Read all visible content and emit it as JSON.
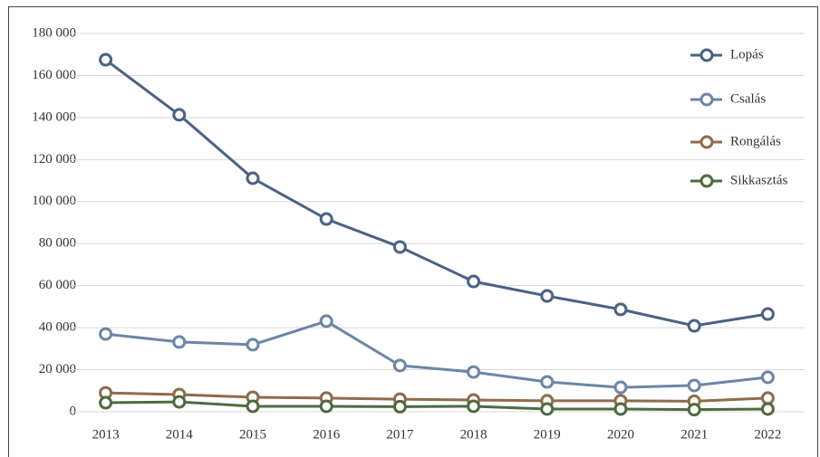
{
  "chart_data": {
    "type": "line",
    "categories": [
      "2013",
      "2014",
      "2015",
      "2016",
      "2017",
      "2018",
      "2019",
      "2020",
      "2021",
      "2022"
    ],
    "series": [
      {
        "name": "Lopás",
        "color": "#4a6285",
        "values": [
          167500,
          141300,
          111100,
          91700,
          78400,
          62000,
          55100,
          48700,
          40900,
          46500
        ]
      },
      {
        "name": "Csalás",
        "color": "#6c86a5",
        "values": [
          37000,
          33200,
          31900,
          43100,
          22000,
          18900,
          14200,
          11600,
          12500,
          16400
        ]
      },
      {
        "name": "Rongálás",
        "color": "#8e6c4c",
        "values": [
          9000,
          8200,
          6900,
          6500,
          6000,
          5600,
          5200,
          5200,
          5000,
          6500
        ]
      },
      {
        "name": "Sikkasztás",
        "color": "#4d6b40",
        "values": [
          4300,
          4700,
          2600,
          2600,
          2400,
          2600,
          1300,
          1300,
          1000,
          1300
        ]
      }
    ],
    "ylim": [
      0,
      180000
    ],
    "yticks": [
      {
        "value": 0,
        "label": "0"
      },
      {
        "value": 20000,
        "label": "20 000"
      },
      {
        "value": 40000,
        "label": "40 000"
      },
      {
        "value": 60000,
        "label": "60 000"
      },
      {
        "value": 80000,
        "label": "80 000"
      },
      {
        "value": 100000,
        "label": "100 000"
      },
      {
        "value": 120000,
        "label": "120 000"
      },
      {
        "value": 140000,
        "label": "140 000"
      },
      {
        "value": 160000,
        "label": "160 000"
      },
      {
        "value": 180000,
        "label": "180 000"
      }
    ],
    "grid": true,
    "legend": "upper right"
  }
}
